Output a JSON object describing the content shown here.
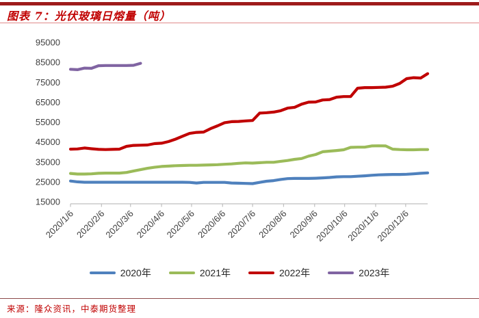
{
  "header": {
    "title": "图表 7：光伏玻璃日熔量（吨）"
  },
  "footer": {
    "source": "来源：隆众资讯，中泰期货整理"
  },
  "colors": {
    "title_red": "#c00000",
    "top_rule": "#9e1b1b",
    "thin_rule": "#e08a8a",
    "axis_line": "#bfbfbf",
    "axis_text": "#3f3f3f",
    "series_2020": "#4f81bd",
    "series_2021": "#9bbb59",
    "series_2022": "#c00000",
    "series_2023": "#8064a2"
  },
  "chart_data": {
    "type": "line",
    "title": "光伏玻璃日熔量（吨）",
    "xlabel": "",
    "ylabel": "",
    "ylim": [
      15000,
      95000
    ],
    "y_ticks": [
      95000,
      85000,
      75000,
      65000,
      55000,
      45000,
      35000,
      25000,
      15000
    ],
    "grid": false,
    "legend_position": "bottom",
    "x_unit": "weekly points aligned to dates of year, monthly tick labels",
    "x_tick_labels": [
      "2020/1/6",
      "2020/2/6",
      "2020/3/6",
      "2020/4/6",
      "2020/5/6",
      "2020/6/6",
      "2020/7/6",
      "2020/8/6",
      "2020/9/6",
      "2020/10/6",
      "2020/11/6",
      "2020/12/6"
    ],
    "x_tick_day_offsets": [
      0,
      31,
      60,
      91,
      121,
      152,
      182,
      213,
      244,
      274,
      305,
      335
    ],
    "series": [
      {
        "name": "2020年",
        "color": "#4f81bd",
        "values": [
          25400,
          25000,
          24800,
          24800,
          24800,
          24800,
          24800,
          24800,
          24800,
          24800,
          24800,
          24800,
          24800,
          24800,
          24800,
          24800,
          24800,
          24700,
          24400,
          24700,
          24700,
          24700,
          24700,
          24400,
          24300,
          24200,
          24100,
          24700,
          25300,
          25600,
          26200,
          26600,
          26700,
          26700,
          26700,
          26800,
          27000,
          27200,
          27500,
          27600,
          27600,
          27800,
          28000,
          28300,
          28500,
          28600,
          28700,
          28700,
          28800,
          29000,
          29300,
          29500
        ]
      },
      {
        "name": "2021年",
        "color": "#9bbb59",
        "values": [
          29200,
          28900,
          28900,
          29000,
          29300,
          29400,
          29400,
          29400,
          29700,
          30400,
          31100,
          31800,
          32300,
          32700,
          32900,
          33100,
          33200,
          33300,
          33300,
          33400,
          33500,
          33600,
          33800,
          34000,
          34300,
          34500,
          34400,
          34600,
          34800,
          34800,
          35300,
          35700,
          36300,
          36700,
          37900,
          38700,
          40100,
          40400,
          40700,
          41100,
          42300,
          42400,
          42400,
          43000,
          43100,
          43000,
          41400,
          41200,
          41100,
          41100,
          41200,
          41200
        ]
      },
      {
        "name": "2022年",
        "color": "#c00000",
        "values": [
          41400,
          41500,
          42000,
          41600,
          41300,
          41200,
          41300,
          41400,
          42800,
          43300,
          43400,
          43500,
          44200,
          44400,
          45200,
          46400,
          47900,
          49300,
          49800,
          50000,
          51700,
          53100,
          54700,
          55200,
          55300,
          55600,
          55800,
          59500,
          59700,
          60000,
          60700,
          62000,
          62400,
          64000,
          65000,
          65100,
          66100,
          66300,
          67500,
          67800,
          67800,
          72000,
          72300,
          72300,
          72400,
          72500,
          73000,
          74400,
          76800,
          77300,
          77100,
          79300
        ]
      },
      {
        "name": "2023年",
        "color": "#8064a2",
        "values": [
          81500,
          81300,
          82100,
          82000,
          83300,
          83400,
          83400,
          83400,
          83400,
          83500,
          84500
        ]
      }
    ]
  }
}
